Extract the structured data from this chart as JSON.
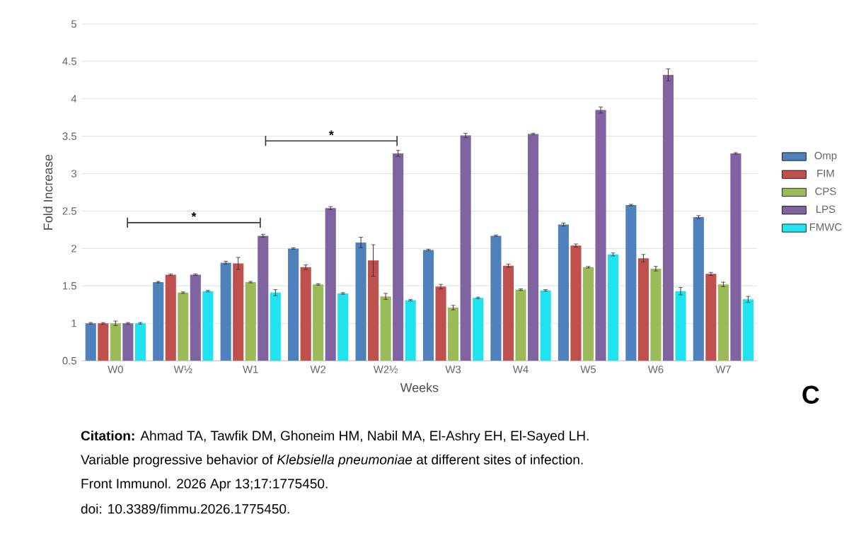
{
  "chart_data": {
    "type": "bar",
    "xlabel": "Weeks",
    "ylabel": "Fold Increase",
    "categories": [
      "W0",
      "W½",
      "W1",
      "W2",
      "W2½",
      "W3",
      "W4",
      "W5",
      "W6",
      "W7"
    ],
    "series": [
      {
        "name": "Omp",
        "color": "#4f81bd",
        "values": [
          1.0,
          1.55,
          1.81,
          2.0,
          2.08,
          1.98,
          2.17,
          2.32,
          2.58,
          2.42
        ],
        "errors": [
          0.01,
          0.01,
          0.02,
          0.01,
          0.07,
          0.01,
          0.01,
          0.02,
          0.01,
          0.02
        ]
      },
      {
        "name": "FIM",
        "color": "#c0504d",
        "values": [
          1.0,
          1.65,
          1.8,
          1.75,
          1.84,
          1.49,
          1.77,
          2.04,
          1.87,
          1.66
        ],
        "errors": [
          0.01,
          0.01,
          0.08,
          0.03,
          0.21,
          0.03,
          0.02,
          0.02,
          0.05,
          0.02
        ]
      },
      {
        "name": "CPS",
        "color": "#9bbb59",
        "values": [
          1.0,
          1.41,
          1.55,
          1.52,
          1.36,
          1.21,
          1.45,
          1.75,
          1.73,
          1.52
        ],
        "errors": [
          0.03,
          0.01,
          0.01,
          0.01,
          0.04,
          0.03,
          0.01,
          0.01,
          0.03,
          0.03
        ]
      },
      {
        "name": "LPS",
        "color": "#8064a2",
        "values": [
          1.0,
          1.65,
          2.17,
          2.54,
          3.27,
          3.51,
          3.53,
          3.85,
          4.32,
          3.27
        ],
        "errors": [
          0.01,
          0.01,
          0.02,
          0.02,
          0.04,
          0.03,
          0.01,
          0.04,
          0.08,
          0.01
        ]
      },
      {
        "name": "FMWC",
        "color": "#1fe3ef",
        "values": [
          1.0,
          1.43,
          1.41,
          1.4,
          1.31,
          1.34,
          1.44,
          1.92,
          1.43,
          1.32
        ],
        "errors": [
          0.01,
          0.01,
          0.04,
          0.01,
          0.01,
          0.01,
          0.01,
          0.02,
          0.05,
          0.04
        ]
      }
    ],
    "ylim": [
      0.5,
      5
    ],
    "yticks": [
      0.5,
      1,
      1.5,
      2,
      2.5,
      3,
      3.5,
      4,
      4.5,
      5
    ],
    "grid": "y",
    "legend": "right",
    "annotations": [
      "*",
      "*",
      "C",
      "**Citation:** Ahmad TA, Tawfik DM, Ghoneim HM, Nabil MA, El-Ashry EH, El-Sayed LH.",
      "Variable progressive behavior of *Klebsiella pneumoniae* at different sites of infection.",
      "Front Immunol. 2026 Apr 13;17:1775450.",
      "doi: 10.3389/fimmu.2026.1775450."
    ]
  }
}
